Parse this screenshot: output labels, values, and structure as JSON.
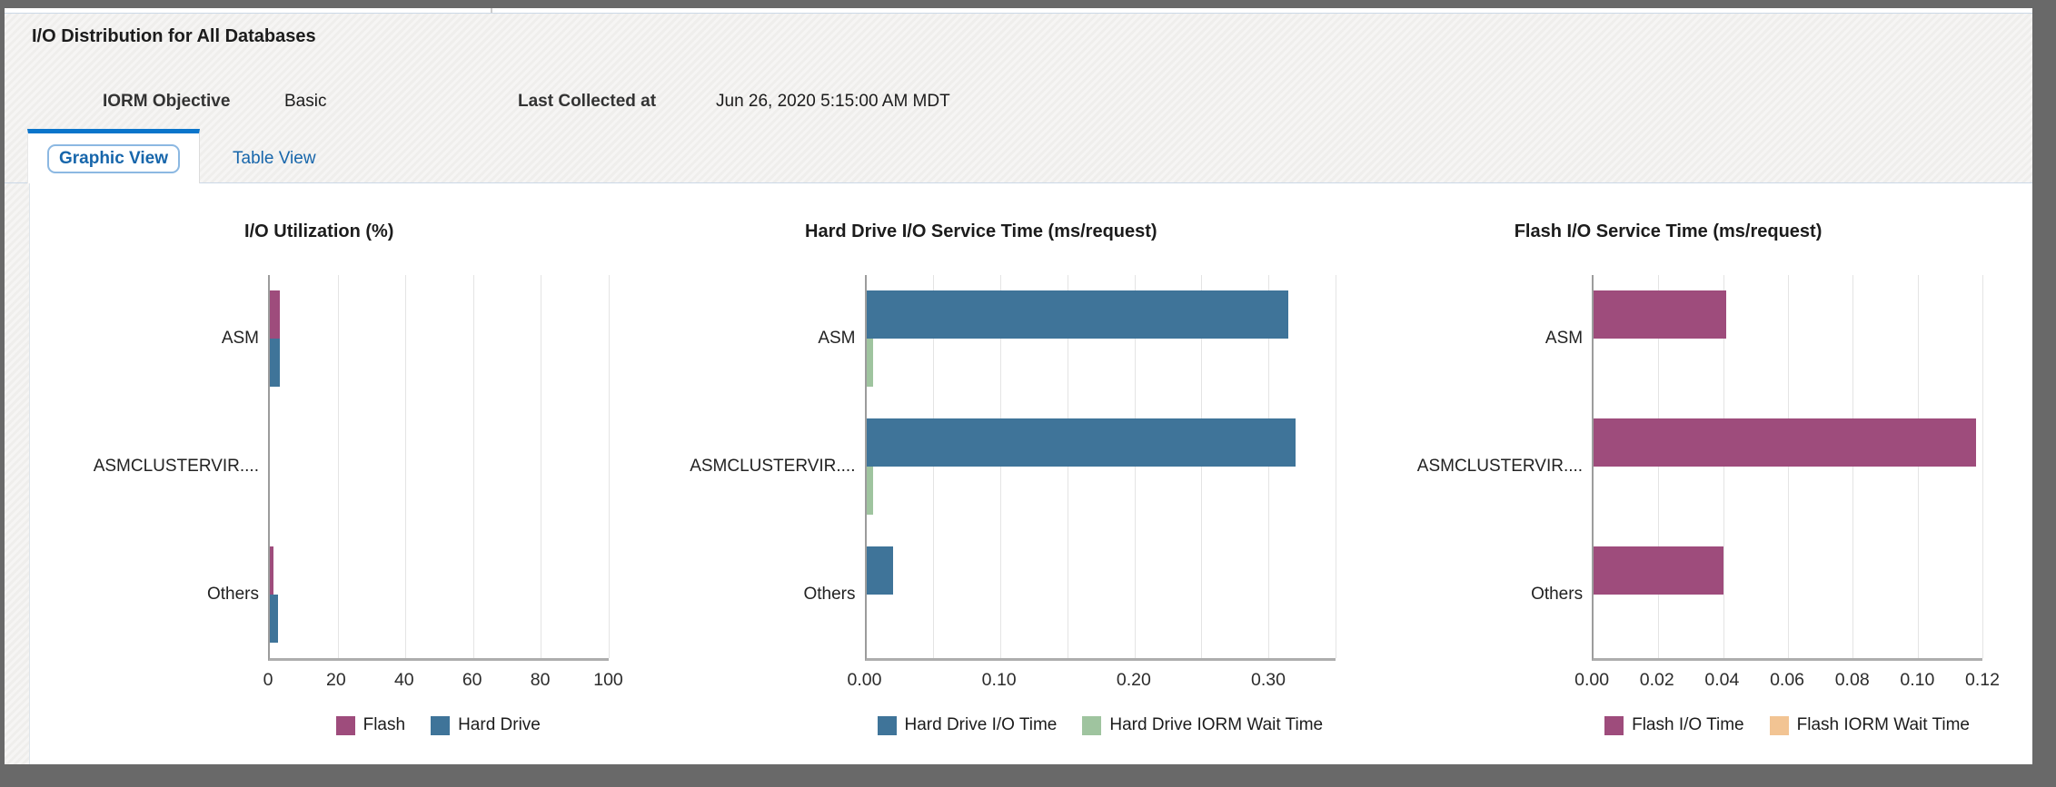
{
  "header": {
    "title": "I/O Distribution for All Databases",
    "iorm_objective_label": "IORM Objective",
    "iorm_objective_value": "Basic",
    "last_collected_label": "Last Collected at",
    "last_collected_value": "Jun 26, 2020 5:15:00 AM MDT",
    "tabs": [
      {
        "label": "Graphic View",
        "active": true
      },
      {
        "label": "Table View",
        "active": false
      }
    ]
  },
  "colors": {
    "frame": "#696969",
    "tab_accent": "#0a75cb",
    "link_blue": "#1766ab",
    "flash_plum": "#9e4c7c",
    "hard_drive_blue": "#3f7499",
    "iorm_wait_green": "#9fc49f",
    "flash_wait_peach": "#f2c493"
  },
  "chart_data": [
    {
      "type": "bar",
      "orientation": "horizontal",
      "title": "I/O Utilization (%)",
      "categories": [
        "ASM",
        "ASMCLUSTERVIR....",
        "Others"
      ],
      "series": [
        {
          "name": "Flash",
          "color": "#9e4c7c",
          "values": [
            3,
            0,
            1
          ]
        },
        {
          "name": "Hard Drive",
          "color": "#3f7499",
          "values": [
            3,
            0,
            2.5
          ]
        }
      ],
      "xlim": [
        0,
        100
      ],
      "grid_step": 20,
      "ticks": [
        0,
        20,
        40,
        60,
        80,
        100
      ],
      "tick_labels": [
        "0",
        "20",
        "40",
        "60",
        "80",
        "100"
      ],
      "legend_position": "bottom",
      "grid": true
    },
    {
      "type": "bar",
      "orientation": "horizontal",
      "title": "Hard Drive I/O Service Time (ms/request)",
      "categories": [
        "ASM",
        "ASMCLUSTERVIR....",
        "Others"
      ],
      "series": [
        {
          "name": "Hard Drive I/O Time",
          "color": "#3f7499",
          "values": [
            0.315,
            0.32,
            0.02
          ]
        },
        {
          "name": "Hard Drive IORM Wait Time",
          "color": "#9fc49f",
          "values": [
            0.005,
            0.005,
            0
          ]
        }
      ],
      "xlim": [
        0,
        0.35
      ],
      "grid_step": 0.05,
      "ticks": [
        0,
        0.1,
        0.2,
        0.3
      ],
      "tick_labels": [
        "0.00",
        "0.10",
        "0.20",
        "0.30"
      ],
      "legend_position": "bottom",
      "grid": true
    },
    {
      "type": "bar",
      "orientation": "horizontal",
      "title": "Flash I/O Service Time (ms/request)",
      "categories": [
        "ASM",
        "ASMCLUSTERVIR....",
        "Others"
      ],
      "series": [
        {
          "name": "Flash I/O Time",
          "color": "#9e4c7c",
          "values": [
            0.041,
            0.118,
            0.04
          ]
        },
        {
          "name": "Flash IORM Wait Time",
          "color": "#f2c493",
          "values": [
            0,
            0,
            0
          ]
        }
      ],
      "xlim": [
        0,
        0.12
      ],
      "grid_step": 0.02,
      "ticks": [
        0,
        0.02,
        0.04,
        0.06,
        0.08,
        0.1,
        0.12
      ],
      "tick_labels": [
        "0.00",
        "0.02",
        "0.04",
        "0.06",
        "0.08",
        "0.10",
        "0.12"
      ],
      "legend_position": "bottom",
      "grid": true
    }
  ]
}
